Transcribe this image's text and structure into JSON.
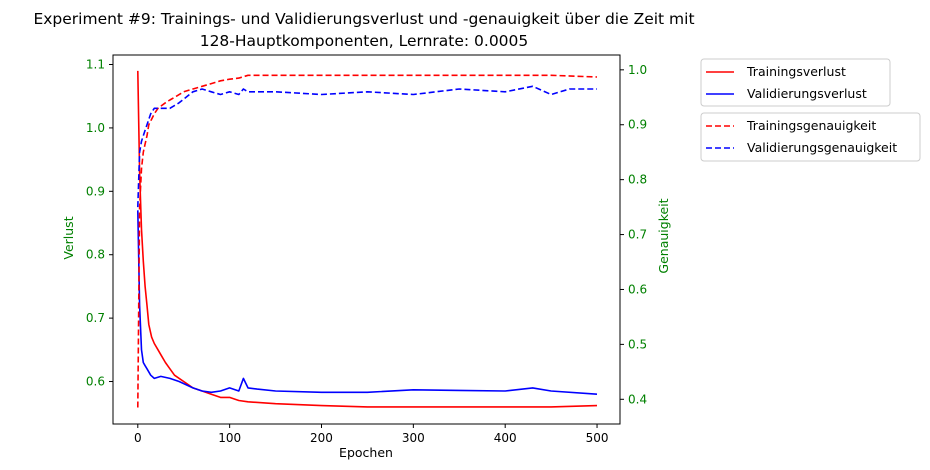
{
  "chart_data": {
    "type": "line",
    "title_line1": "Experiment #9: Trainings- und Validierungsverlust und -genauigkeit über die Zeit mit",
    "title_line2": "128-Hauptkomponenten, Lernrate: 0.0005",
    "xlabel": "Epochen",
    "ylabel_left": "Verlust",
    "ylabel_right": "Genauigkeit",
    "xlim": [
      -27,
      525
    ],
    "ylim_left": [
      0.533,
      1.115
    ],
    "ylim_right": [
      0.355,
      1.027
    ],
    "xticks": [
      0,
      100,
      200,
      300,
      400,
      500
    ],
    "yticks_left": [
      0.6,
      0.7,
      0.8,
      0.9,
      1.0,
      1.1
    ],
    "yticks_right": [
      0.4,
      0.5,
      0.6,
      0.7,
      0.8,
      0.9,
      1.0
    ],
    "ytick_left_labels": [
      "0.6",
      "0.7",
      "0.8",
      "0.9",
      "1.0",
      "1.1"
    ],
    "ytick_right_labels": [
      "0.4",
      "0.5",
      "0.6",
      "0.7",
      "0.8",
      "0.9",
      "1.0"
    ],
    "grid": false,
    "axis_label_color": "#008000",
    "legend_placement": "outside-right",
    "series": [
      {
        "name": "Trainingsverlust",
        "axis": "left",
        "style": "solid",
        "color": "#ff0000",
        "x": [
          0,
          2,
          4,
          6,
          8,
          10,
          12,
          15,
          18,
          22,
          26,
          30,
          35,
          40,
          50,
          60,
          70,
          80,
          90,
          100,
          110,
          120,
          150,
          200,
          250,
          300,
          350,
          400,
          450,
          500
        ],
        "y": [
          1.09,
          0.93,
          0.84,
          0.79,
          0.75,
          0.72,
          0.69,
          0.67,
          0.66,
          0.65,
          0.64,
          0.63,
          0.62,
          0.61,
          0.6,
          0.59,
          0.585,
          0.58,
          0.575,
          0.575,
          0.57,
          0.568,
          0.565,
          0.562,
          0.56,
          0.56,
          0.56,
          0.56,
          0.56,
          0.562
        ]
      },
      {
        "name": "Validierungsverlust",
        "axis": "left",
        "style": "solid",
        "color": "#0000ff",
        "x": [
          0,
          2,
          4,
          6,
          8,
          10,
          14,
          18,
          25,
          35,
          45,
          60,
          70,
          80,
          90,
          100,
          110,
          115,
          120,
          130,
          150,
          200,
          250,
          300,
          350,
          400,
          430,
          450,
          500
        ],
        "y": [
          0.87,
          0.72,
          0.65,
          0.63,
          0.625,
          0.62,
          0.61,
          0.605,
          0.608,
          0.605,
          0.6,
          0.59,
          0.585,
          0.583,
          0.585,
          0.59,
          0.585,
          0.605,
          0.59,
          0.588,
          0.585,
          0.583,
          0.583,
          0.587,
          0.586,
          0.585,
          0.59,
          0.585,
          0.58
        ]
      },
      {
        "name": "Trainingsgenauigkeit",
        "axis": "right",
        "style": "dashed",
        "color": "#ff0000",
        "x": [
          0,
          2,
          4,
          6,
          8,
          10,
          12,
          15,
          18,
          22,
          26,
          30,
          35,
          40,
          50,
          60,
          70,
          80,
          90,
          100,
          110,
          120,
          150,
          200,
          250,
          300,
          350,
          400,
          450,
          500
        ],
        "y": [
          0.385,
          0.75,
          0.82,
          0.85,
          0.865,
          0.88,
          0.9,
          0.91,
          0.92,
          0.93,
          0.935,
          0.94,
          0.945,
          0.95,
          0.96,
          0.965,
          0.97,
          0.975,
          0.98,
          0.983,
          0.985,
          0.99,
          0.99,
          0.99,
          0.99,
          0.99,
          0.99,
          0.99,
          0.99,
          0.987
        ]
      },
      {
        "name": "Validierungsgenauigkeit",
        "axis": "right",
        "style": "dashed",
        "color": "#0000ff",
        "x": [
          0,
          2,
          4,
          6,
          8,
          10,
          14,
          18,
          25,
          35,
          45,
          60,
          70,
          80,
          90,
          100,
          110,
          115,
          120,
          150,
          200,
          250,
          300,
          350,
          400,
          430,
          450,
          470,
          500
        ],
        "y": [
          0.75,
          0.85,
          0.87,
          0.88,
          0.89,
          0.9,
          0.92,
          0.93,
          0.93,
          0.93,
          0.94,
          0.96,
          0.965,
          0.96,
          0.955,
          0.96,
          0.955,
          0.965,
          0.96,
          0.96,
          0.955,
          0.96,
          0.955,
          0.965,
          0.96,
          0.97,
          0.955,
          0.965,
          0.965
        ]
      }
    ]
  }
}
